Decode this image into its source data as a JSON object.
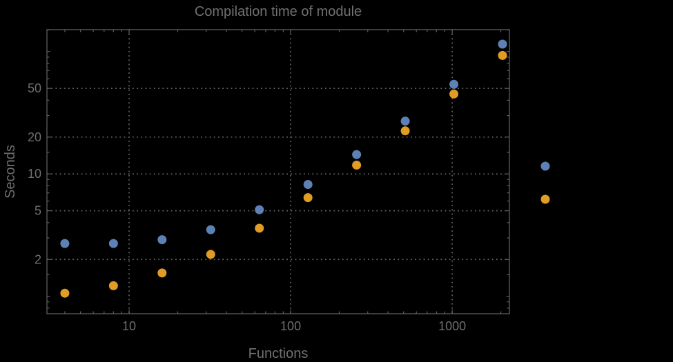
{
  "figure": {
    "background_color": "#000000",
    "frame_color": "#5e5e5e",
    "grid_color": "#656565",
    "text_color": "#6f6f6f"
  },
  "chart_data": {
    "type": "scatter",
    "title": "Compilation time of module",
    "xlabel": "Functions",
    "ylabel": "Seconds",
    "xscale": "log",
    "yscale": "log",
    "xlim": [
      3.1,
      2260
    ],
    "ylim": [
      0.72,
      151
    ],
    "grid": {
      "style": "dotted",
      "x_values": [
        10,
        100,
        1000
      ],
      "y_values": [
        2,
        5,
        10,
        20,
        50
      ]
    },
    "x_ticks": {
      "major": [
        10,
        100,
        1000
      ],
      "major_labels": [
        "10",
        "100",
        "1000"
      ],
      "minor": [
        4,
        5,
        6,
        7,
        8,
        9,
        20,
        30,
        40,
        50,
        60,
        70,
        80,
        90,
        200,
        300,
        400,
        500,
        600,
        700,
        800,
        900,
        2000
      ]
    },
    "y_ticks": {
      "major": [
        2,
        5,
        10,
        20,
        50
      ],
      "major_labels": [
        "2",
        "5",
        "10",
        "20",
        "50"
      ],
      "medium": [
        1,
        100
      ],
      "minor": [
        0.8,
        0.9,
        1.5,
        3,
        4,
        6,
        7,
        8,
        9,
        15,
        30,
        40,
        60,
        70,
        80,
        90,
        150
      ]
    },
    "x": [
      4,
      8,
      16,
      32,
      64,
      128,
      256,
      512,
      1024,
      2048
    ],
    "series": [
      {
        "name": "series-1",
        "color": "#5e81b5",
        "values": [
          2.7,
          2.7,
          2.9,
          3.5,
          5.1,
          8.2,
          14.4,
          27,
          54,
          115
        ]
      },
      {
        "name": "series-2",
        "color": "#e09c24",
        "values": [
          1.06,
          1.22,
          1.55,
          2.2,
          3.6,
          6.4,
          11.8,
          22.5,
          45,
          93
        ]
      }
    ],
    "legend": {
      "position": "right-outside",
      "markers": [
        {
          "series": "series-1",
          "color": "#5e81b5"
        },
        {
          "series": "series-2",
          "color": "#e09c24"
        }
      ]
    }
  }
}
